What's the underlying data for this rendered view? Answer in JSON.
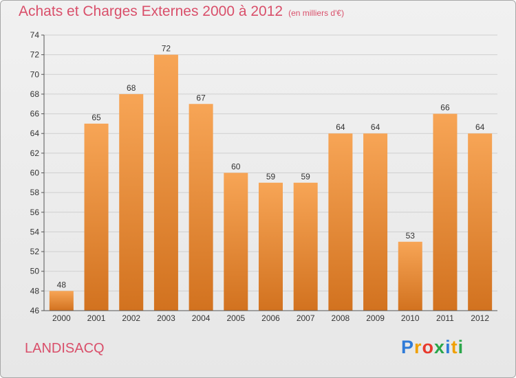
{
  "title": "Achats et Charges Externes 2000 à 2012",
  "unit": "(en milliers d'€)",
  "commune": "LANDISACQ",
  "logo": {
    "p": "P",
    "r": "r",
    "o": "o",
    "x": "x",
    "i1": "i",
    "t": "t",
    "i2": "i"
  },
  "colors": {
    "bar_top": "#f7a556",
    "bar_bottom": "#d2721f",
    "title": "#d94f6a",
    "grid": "#cfcfcf",
    "axis": "#555555"
  },
  "chart_data": {
    "type": "bar",
    "title": "Achats et Charges Externes 2000 à 2012",
    "subtitle": "(en milliers d'€)",
    "xlabel": "",
    "ylabel": "",
    "categories": [
      "2000",
      "2001",
      "2002",
      "2003",
      "2004",
      "2005",
      "2006",
      "2007",
      "2008",
      "2009",
      "2010",
      "2011",
      "2012"
    ],
    "values": [
      48,
      65,
      68,
      72,
      67,
      60,
      59,
      59,
      64,
      64,
      53,
      66,
      64
    ],
    "ylim": [
      46,
      74
    ],
    "yticks": [
      46,
      48,
      50,
      52,
      54,
      56,
      58,
      60,
      62,
      64,
      66,
      68,
      70,
      72,
      74
    ],
    "grid": true,
    "legend": "none"
  }
}
